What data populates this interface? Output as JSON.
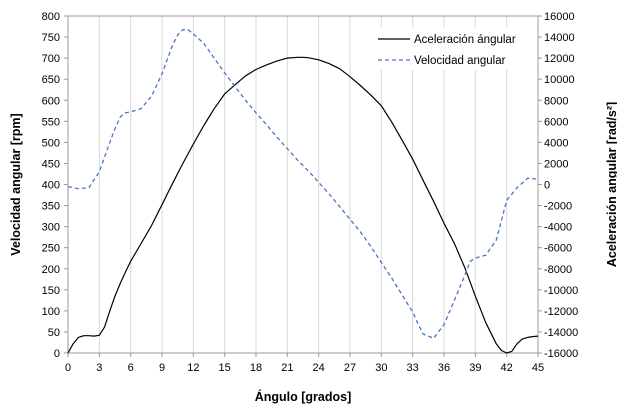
{
  "chart_data": {
    "type": "line",
    "xlabel": "Ángulo [grados]",
    "ylabel_left": "Velocidad angular [rpm]",
    "ylabel_right": "Aceleración angular [rad/s²]",
    "xlim": [
      0,
      45
    ],
    "ylim_left": [
      0,
      800
    ],
    "ylim_right": [
      -16000,
      16000
    ],
    "x_ticks": [
      "0",
      "3",
      "6",
      "9",
      "12",
      "15",
      "18",
      "21",
      "24",
      "27",
      "30",
      "33",
      "36",
      "39",
      "42",
      "45"
    ],
    "y_left_ticks": [
      "0",
      "50",
      "100",
      "150",
      "200",
      "250",
      "300",
      "350",
      "400",
      "450",
      "500",
      "550",
      "600",
      "650",
      "700",
      "750",
      "800"
    ],
    "y_right_ticks": [
      "-16000",
      "-14000",
      "-12000",
      "-10000",
      "-8000",
      "-6000",
      "-4000",
      "-2000",
      "0",
      "2000",
      "4000",
      "6000",
      "8000",
      "10000",
      "12000",
      "14000",
      "16000"
    ],
    "grid": "vertical",
    "legend_position": "top-right",
    "series": [
      {
        "name": "Aceleración ángular",
        "axis": "left",
        "color": "#000000",
        "style": "solid",
        "x": [
          0,
          0.5,
          1,
          1.5,
          2,
          2.5,
          3,
          3.5,
          4,
          4.5,
          5,
          5.5,
          6,
          7,
          8,
          9,
          10,
          11,
          12,
          13,
          14,
          15,
          16,
          17,
          18,
          19,
          20,
          21,
          22,
          22.5,
          23,
          24,
          25,
          26,
          27,
          28,
          29,
          30,
          31,
          32,
          33,
          34,
          35,
          36,
          37,
          38,
          39,
          40,
          41,
          41.5,
          42,
          42.5,
          43,
          43.5,
          44,
          44.5,
          45
        ],
        "values": [
          0,
          22,
          37,
          41,
          41,
          40,
          42,
          62,
          100,
          135,
          165,
          192,
          218,
          260,
          303,
          352,
          402,
          450,
          496,
          540,
          580,
          615,
          637,
          658,
          673,
          684,
          693,
          700,
          702,
          702,
          701,
          696,
          687,
          675,
          656,
          635,
          612,
          587,
          548,
          505,
          460,
          410,
          360,
          308,
          260,
          202,
          135,
          72,
          22,
          6,
          0,
          4,
          22,
          33,
          37,
          39,
          40
        ]
      },
      {
        "name": "Velocidad angular",
        "axis": "right",
        "color": "#4a74c4",
        "style": "dashed",
        "x": [
          0,
          1,
          2,
          3,
          4,
          4.5,
          5,
          5.5,
          6,
          7,
          8,
          9,
          10,
          10.5,
          11,
          11.5,
          12,
          13,
          14,
          15,
          16,
          17,
          18,
          19,
          20,
          21,
          22,
          23,
          24,
          25,
          26,
          27,
          28,
          29,
          30,
          31,
          32,
          33,
          33.5,
          34,
          35,
          36,
          37,
          38,
          38.5,
          39,
          40,
          41,
          42,
          43,
          44,
          45
        ],
        "values": [
          -200,
          -400,
          -300,
          1200,
          4000,
          5300,
          6400,
          6800,
          6900,
          7200,
          8400,
          10500,
          13200,
          14200,
          14700,
          14700,
          14300,
          13400,
          12000,
          10600,
          9300,
          8000,
          6800,
          5700,
          4500,
          3400,
          2300,
          1300,
          200,
          -900,
          -2100,
          -3300,
          -4500,
          -5900,
          -7400,
          -8900,
          -10500,
          -12100,
          -13200,
          -14200,
          -14600,
          -13300,
          -11000,
          -8600,
          -7300,
          -7000,
          -6700,
          -5300,
          -1500,
          -300,
          600,
          500
        ]
      }
    ]
  }
}
